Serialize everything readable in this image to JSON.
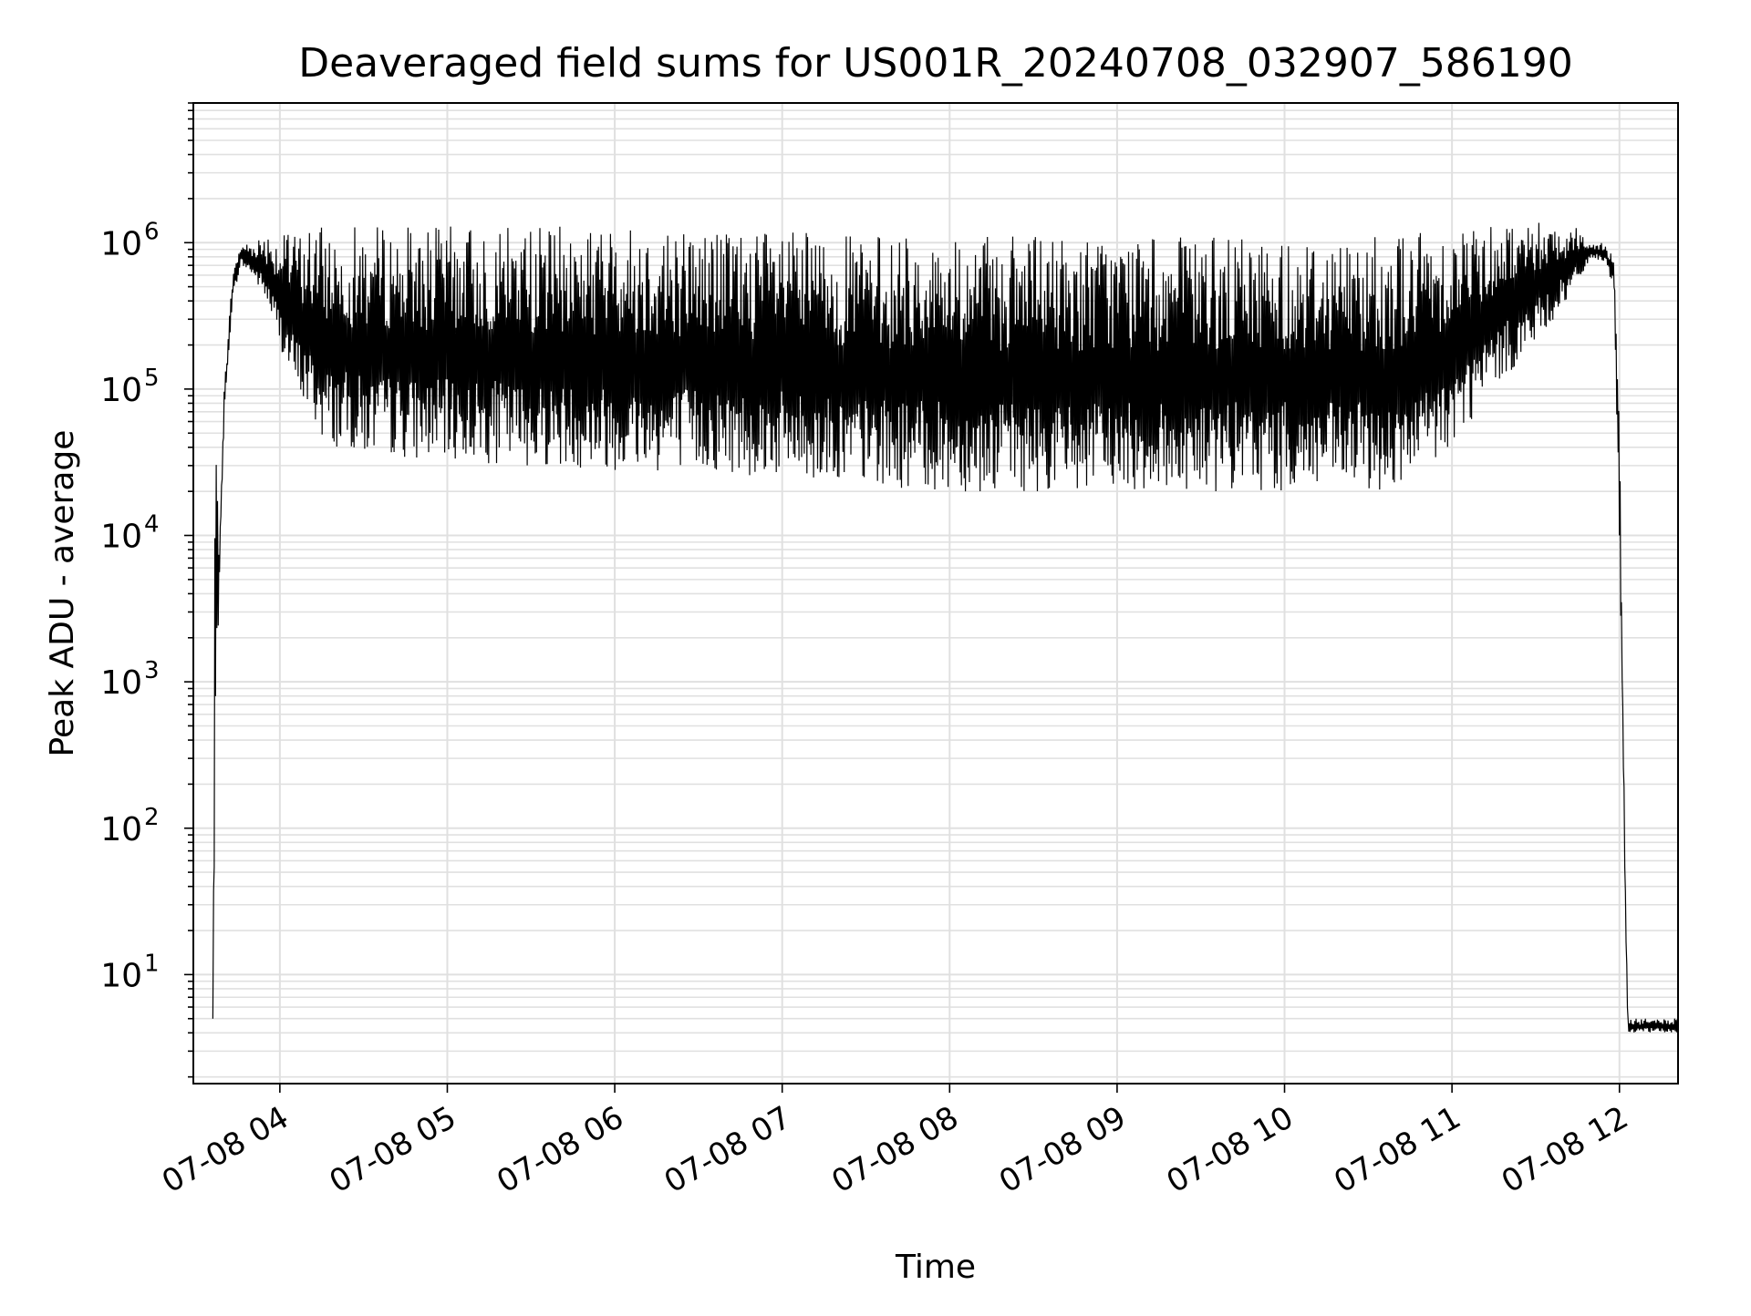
{
  "chart_data": {
    "type": "line",
    "title": "Deaveraged field sums for US001R_20240708_032907_586190",
    "xlabel": "Time",
    "ylabel": "Peak ADU - average",
    "yscale": "log",
    "ylim": [
      1.8,
      9000000
    ],
    "xlim": [
      "07-08 03:29",
      "07-08 12:21"
    ],
    "grid": "on (major and minor)",
    "line_color": "#000000",
    "grid_color": "#e0e0e0",
    "x_ticks": [
      "07-08 04",
      "07-08 05",
      "07-08 06",
      "07-08 07",
      "07-08 08",
      "07-08 09",
      "07-08 10",
      "07-08 11",
      "07-08 12"
    ],
    "y_ticks": [
      {
        "base": "10",
        "exp": "1"
      },
      {
        "base": "10",
        "exp": "2"
      },
      {
        "base": "10",
        "exp": "3"
      },
      {
        "base": "10",
        "exp": "4"
      },
      {
        "base": "10",
        "exp": "5"
      },
      {
        "base": "10",
        "exp": "6"
      }
    ],
    "series": [
      {
        "envelope": {
          "time": [
            "07-08 03:36",
            "07-08 03:37",
            "07-08 03:38",
            "07-08 03:40",
            "07-08 03:43",
            "07-08 03:46",
            "07-08 03:50",
            "07-08 03:55",
            "07-08 04:00",
            "07-08 04:05",
            "07-08 04:10",
            "07-08 04:15",
            "07-08 04:20",
            "07-08 04:25",
            "07-08 04:30",
            "07-08 04:40",
            "07-08 04:50",
            "07-08 05:00",
            "07-08 05:30",
            "07-08 06:00",
            "07-08 06:30",
            "07-08 07:00",
            "07-08 07:30",
            "07-08 08:00",
            "07-08 08:30",
            "07-08 09:00",
            "07-08 09:30",
            "07-08 10:00",
            "07-08 10:30",
            "07-08 10:45",
            "07-08 11:00",
            "07-08 11:15",
            "07-08 11:30",
            "07-08 11:45",
            "07-08 11:50",
            "07-08 11:55",
            "07-08 11:58",
            "07-08 12:00",
            "07-08 12:02",
            "07-08 12:03"
          ],
          "upper": [
            5,
            200000,
            6000,
            100000,
            600000,
            1000000,
            1000000,
            1200000,
            1100000,
            1200000,
            1300000,
            1300000,
            1300000,
            1300000,
            1300000,
            1300000,
            1300000,
            1300000,
            1300000,
            1300000,
            1300000,
            1200000,
            1100000,
            1100000,
            1100000,
            1100000,
            1100000,
            1100000,
            1100000,
            1200000,
            1300000,
            1400000,
            1500000,
            1300000,
            1000000,
            1000000,
            800000,
            80000,
            60,
            5
          ],
          "lower": [
            5,
            200,
            3000,
            60000,
            400000,
            700000,
            600000,
            400000,
            200000,
            100000,
            70000,
            45000,
            40000,
            38000,
            35000,
            35000,
            33000,
            32000,
            30000,
            28000,
            27000,
            25000,
            22000,
            20000,
            20000,
            20000,
            20000,
            20000,
            20000,
            20000,
            40000,
            100000,
            200000,
            500000,
            800000,
            700000,
            500000,
            10000,
            40,
            4
          ]
        }
      }
    ]
  }
}
